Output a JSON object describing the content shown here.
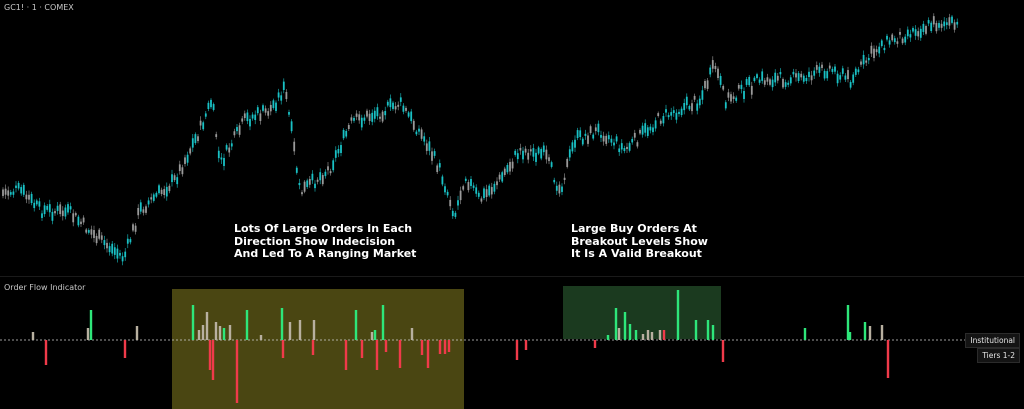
{
  "chart": {
    "symbol_label": "GC1! · 1 · COMEX",
    "indicator_title": "Order Flow Indicator",
    "annotation_left": [
      "Lots Of Large Orders In Each",
      "Direction Show Indecision",
      "And Led To A Ranging Market"
    ],
    "annotation_right": [
      "Large Buy Orders At",
      "Breakout Levels Show",
      "It Is A Valid Breakout"
    ],
    "tag_institutional": "Institutional",
    "tag_tiers": "Tiers 1-2",
    "colors": {
      "background": "#000000",
      "candle_up": "#19c2c6",
      "candle_down": "#9a9a9a",
      "buy_bar": "#2ee67a",
      "sell_bar": "#f03a4a",
      "neutral_bar": "#b8b0a0",
      "range_highlight": "#4a4612",
      "breakout_highlight": "#1b3a1f"
    }
  }
}
